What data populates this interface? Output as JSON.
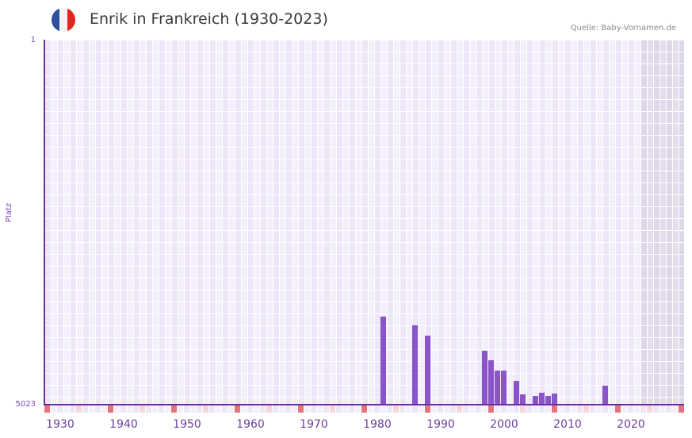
{
  "header": {
    "title": "Enrik in Frankreich (1930-2023)",
    "source": "Quelle: Baby-Vornamen.de",
    "flag_colors": [
      "#2e4f9e",
      "#f4f4f4",
      "#e52421"
    ]
  },
  "axes": {
    "y_top_label": "1",
    "y_bottom_label": "5023",
    "y_title": "Platz",
    "x_labels": [
      "1930",
      "1940",
      "1950",
      "1960",
      "1970",
      "1980",
      "1990",
      "2000",
      "2010",
      "2020"
    ]
  },
  "colors": {
    "bar": "#8a55c8",
    "axis": "#6b2fa0",
    "grid_light": "#f3effc",
    "grid_dark": "#ece6f8",
    "future_shade": "#e3dded",
    "decade_marker": "#e5737c",
    "half_decade_marker": "#f4d6de"
  },
  "chart_data": {
    "type": "bar",
    "title": "Enrik in Frankreich (1930-2023)",
    "xlabel": "",
    "ylabel": "Platz",
    "y_inverted": true,
    "ylim": [
      5023,
      1
    ],
    "x_range": [
      1928,
      2028
    ],
    "shaded_future_from": 2022,
    "grid": true,
    "x": [
      1981,
      1986,
      1988,
      1997,
      1998,
      1999,
      2000,
      2002,
      2003,
      2005,
      2006,
      2007,
      2008,
      2016
    ],
    "values": [
      3811,
      3931,
      4073,
      4281,
      4412,
      4554,
      4554,
      4696,
      4881,
      4903,
      4859,
      4903,
      4870,
      4761
    ],
    "x_tick_labels": [
      "1930",
      "1940",
      "1950",
      "1960",
      "1970",
      "1980",
      "1990",
      "2000",
      "2010",
      "2020"
    ],
    "y_tick_labels": [
      "1",
      "5023"
    ]
  }
}
